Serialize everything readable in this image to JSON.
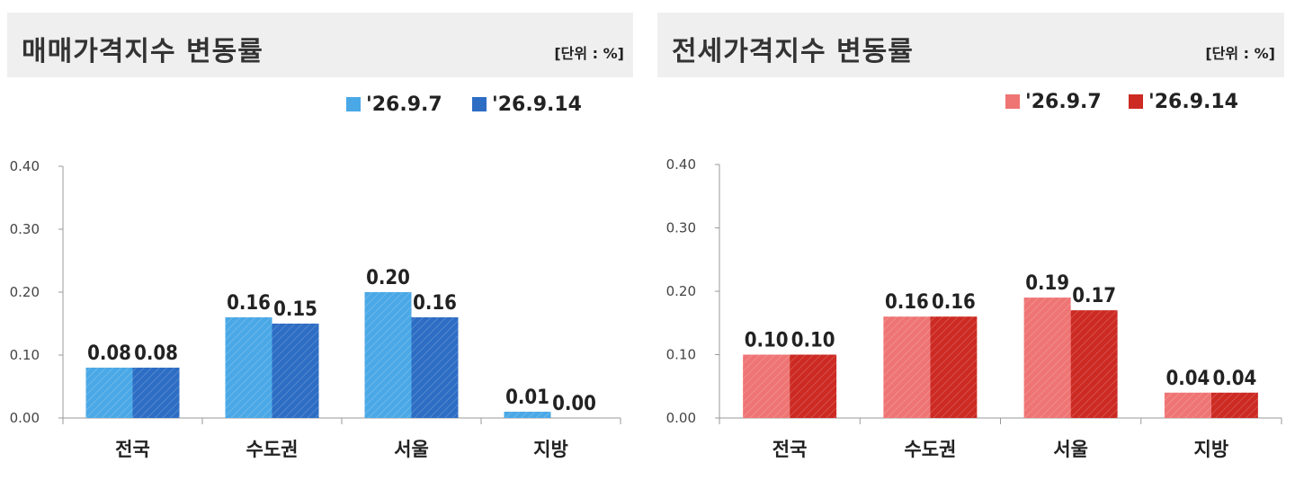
{
  "charts": [
    {
      "title": "매매가격지수 변동률",
      "unit": "[단위 : %]",
      "colors": {
        "series1": "#4aa8e6",
        "series2": "#2d6dc4"
      }
    },
    {
      "title": "전세가격지수 변동률",
      "unit": "[단위 : %]",
      "colors": {
        "series1": "#ef7474",
        "series2": "#cc2a22"
      }
    }
  ],
  "chart_data": [
    {
      "type": "bar",
      "title": "매매가격지수 변동률",
      "categories": [
        "전국",
        "수도권",
        "서울",
        "지방"
      ],
      "series": [
        {
          "name": "'26.9.7",
          "values": [
            0.08,
            0.16,
            0.2,
            0.01
          ]
        },
        {
          "name": "'26.9.14",
          "values": [
            0.08,
            0.15,
            0.16,
            0.0
          ]
        }
      ],
      "data_labels": [
        [
          "0.08",
          "0.16",
          "0.20",
          "0.01"
        ],
        [
          "0.08",
          "0.15",
          "0.16",
          "0.00"
        ]
      ],
      "ylim": [
        0,
        0.4
      ],
      "yticks": [
        "0.00",
        "0.10",
        "0.20",
        "0.30",
        "0.40"
      ],
      "legend": "top-right",
      "grid": false
    },
    {
      "type": "bar",
      "title": "전세가격지수 변동률",
      "categories": [
        "전국",
        "수도권",
        "서울",
        "지방"
      ],
      "series": [
        {
          "name": "'26.9.7",
          "values": [
            0.1,
            0.16,
            0.19,
            0.04
          ]
        },
        {
          "name": "'26.9.14",
          "values": [
            0.1,
            0.16,
            0.17,
            0.04
          ]
        }
      ],
      "data_labels": [
        [
          "0.10",
          "0.16",
          "0.19",
          "0.04"
        ],
        [
          "0.10",
          "0.16",
          "0.17",
          "0.04"
        ]
      ],
      "ylim": [
        0,
        0.4
      ],
      "yticks": [
        "0.00",
        "0.10",
        "0.20",
        "0.30",
        "0.40"
      ],
      "legend": "top-right",
      "grid": false
    }
  ]
}
